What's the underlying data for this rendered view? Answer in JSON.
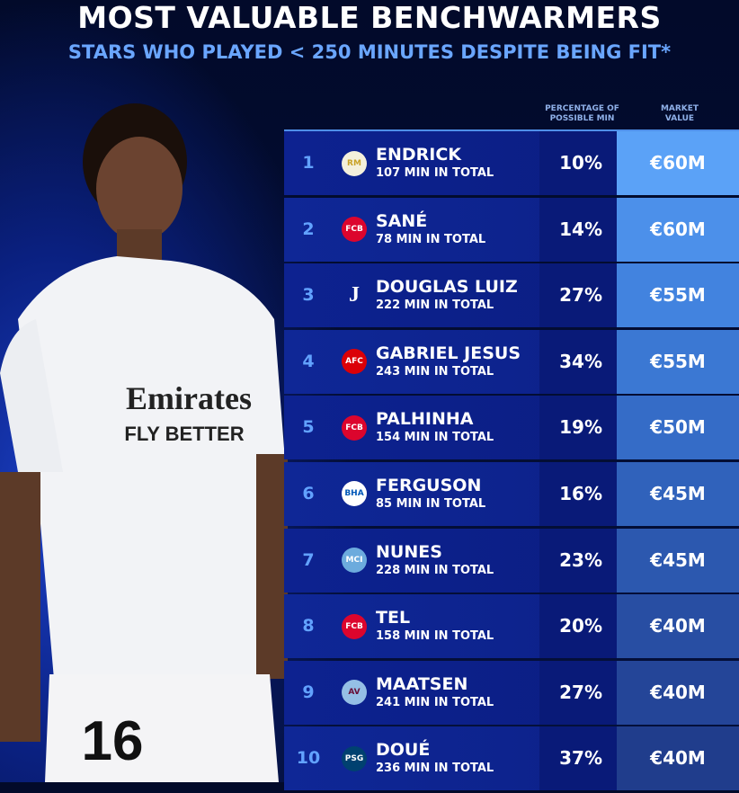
{
  "header": {
    "title": "MOST VALUABLE BENCHWARMERS",
    "subtitle": "STARS WHO PLAYED < 250 MINUTES DESPITE BEING FIT*"
  },
  "columns": {
    "percentage": "PERCENTAGE OF POSSIBLE MIN",
    "value": "MARKET VALUE"
  },
  "photo": {
    "sponsor": "Emirates",
    "sponsor_tagline": "FLY BETTER",
    "shirt_number": "16"
  },
  "rows": [
    {
      "rank": "1",
      "crest": "real-madrid-crest-icon",
      "name": "ENDRICK",
      "mins": "107 MIN IN TOTAL",
      "pct": "10%",
      "value": "€60M",
      "color": "#5ba2f7"
    },
    {
      "rank": "2",
      "crest": "bayern-crest-icon",
      "name": "SANÉ",
      "mins": "78 MIN IN TOTAL",
      "pct": "14%",
      "value": "€60M",
      "color": "#4c90ea"
    },
    {
      "rank": "3",
      "crest": "juventus-crest-icon",
      "name": "DOUGLAS LUIZ",
      "mins": "222 MIN IN TOTAL",
      "pct": "27%",
      "value": "€55M",
      "color": "#4283df"
    },
    {
      "rank": "4",
      "crest": "arsenal-crest-icon",
      "name": "GABRIEL JESUS",
      "mins": "243 MIN IN TOTAL",
      "pct": "34%",
      "value": "€55M",
      "color": "#3b78d3"
    },
    {
      "rank": "5",
      "crest": "bayern-crest-icon",
      "name": "PALHINHA",
      "mins": "154 MIN IN TOTAL",
      "pct": "19%",
      "value": "€50M",
      "color": "#356cc7"
    },
    {
      "rank": "6",
      "crest": "brighton-crest-icon",
      "name": "FERGUSON",
      "mins": "85 MIN IN TOTAL",
      "pct": "16%",
      "value": "€45M",
      "color": "#3062bb"
    },
    {
      "rank": "7",
      "crest": "man-city-crest-icon",
      "name": "NUNES",
      "mins": "228 MIN IN TOTAL",
      "pct": "23%",
      "value": "€45M",
      "color": "#2c58af"
    },
    {
      "rank": "8",
      "crest": "bayern-crest-icon",
      "name": "TEL",
      "mins": "158 MIN IN TOTAL",
      "pct": "20%",
      "value": "€40M",
      "color": "#284ea3"
    },
    {
      "rank": "9",
      "crest": "aston-villa-crest-icon",
      "name": "MAATSEN",
      "mins": "241 MIN IN TOTAL",
      "pct": "27%",
      "value": "€40M",
      "color": "#244598"
    },
    {
      "rank": "10",
      "crest": "psg-crest-icon",
      "name": "DOUÉ",
      "mins": "236 MIN IN TOTAL",
      "pct": "37%",
      "value": "€40M",
      "color": "#203d8c"
    }
  ]
}
